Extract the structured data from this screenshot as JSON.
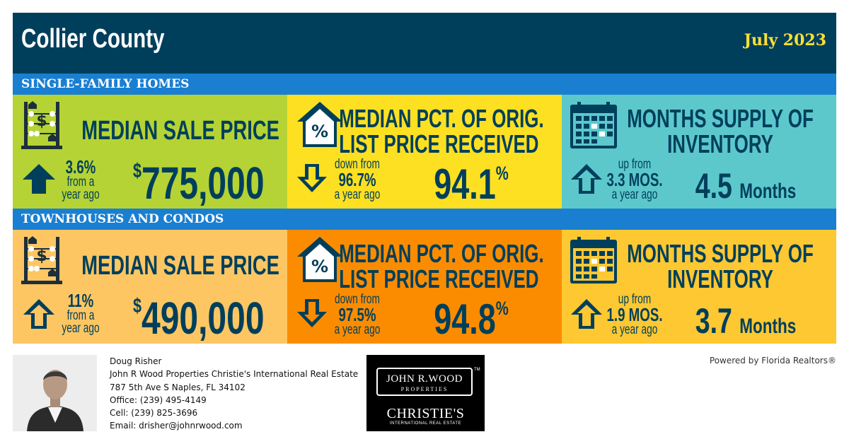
{
  "header": {
    "county": "Collier County",
    "month": "July 2023"
  },
  "sections": [
    {
      "title": "SINGLE-FAMILY HOMES",
      "panels": [
        {
          "title_line1": "MEDIAN SALE PRICE",
          "title_line2": "",
          "icon": "abacus-dollar-icon",
          "direction": "up",
          "change_line1": "3.6%",
          "change_line2": "from a",
          "change_line3": "year ago",
          "value_prefix": "$",
          "value": "775,000",
          "value_suffix": "",
          "bg": "#b5d334"
        },
        {
          "title_line1": "MEDIAN PCT. OF ORIG.",
          "title_line2": "LIST PRICE RECEIVED",
          "icon": "house-percent-icon",
          "direction": "down",
          "change_line1": "down from",
          "change_line2": "96.7%",
          "change_line3": "a year ago",
          "value_prefix": "",
          "value": "94.1",
          "value_suffix": "%",
          "bg": "#fde021"
        },
        {
          "title_line1": "MONTHS SUPPLY OF",
          "title_line2": "INVENTORY",
          "icon": "calendar-icon",
          "direction": "up",
          "change_line1": "up from",
          "change_line2": "3.3 MOS.",
          "change_line3": "a year ago",
          "value_prefix": "",
          "value": "4.5",
          "value_suffix": "Months",
          "bg": "#5cc8cc"
        }
      ]
    },
    {
      "title": "TOWNHOUSES AND CONDOS",
      "panels": [
        {
          "title_line1": "MEDIAN SALE PRICE",
          "title_line2": "",
          "icon": "abacus-dollar-icon",
          "direction": "up",
          "change_line1": "11%",
          "change_line2": "from a",
          "change_line3": "year ago",
          "value_prefix": "$",
          "value": "490,000",
          "value_suffix": "",
          "bg": "#fdc663"
        },
        {
          "title_line1": "MEDIAN PCT. OF ORIG.",
          "title_line2": "LIST PRICE RECEIVED",
          "icon": "house-percent-icon",
          "direction": "down",
          "change_line1": "down from",
          "change_line2": "97.5%",
          "change_line3": "a year ago",
          "value_prefix": "",
          "value": "94.8",
          "value_suffix": "%",
          "bg": "#fb8c00"
        },
        {
          "title_line1": "MONTHS SUPPLY OF",
          "title_line2": "INVENTORY",
          "icon": "calendar-icon",
          "direction": "up",
          "change_line1": "up from",
          "change_line2": "1.9 MOS.",
          "change_line3": "a year ago",
          "value_prefix": "",
          "value": "3.7",
          "value_suffix": "Months",
          "bg": "#fdc832"
        }
      ]
    }
  ],
  "agent": {
    "name": "Doug Risher",
    "company": "John R Wood Properties Christie's International Real Estate",
    "address": "787 5th Ave S Naples, FL 34102",
    "office": "Office: (239) 495-4149",
    "cell": "Cell: (239) 825-3696",
    "email": "Email: drisher@johnrwood.com"
  },
  "logo": {
    "line1": "JOHN R.WOOD",
    "line2": "PROPERTIES",
    "line3": "CHRISTIE'S",
    "line4": "INTERNATIONAL REAL ESTATE",
    "tm": "TM"
  },
  "powered_by": "Powered by Florida Realtors®",
  "colors": {
    "navy": "#003f5c",
    "band_blue": "#1a7fd1",
    "month_yellow": "#ffe033"
  }
}
